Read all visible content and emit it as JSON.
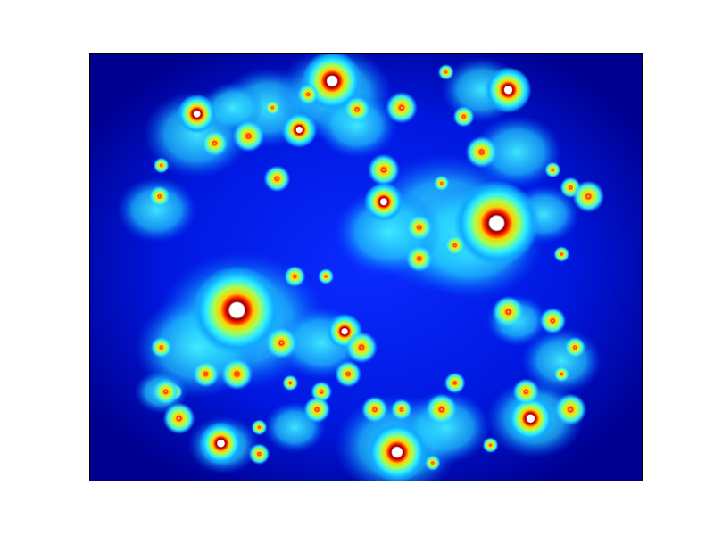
{
  "figure": {
    "background": "#ffffff",
    "frame_color": "#000000",
    "image_content": "julia-set-fractal",
    "colormap": "jet",
    "colormap_stops": [
      "#00008f",
      "#0000ff",
      "#00ffff",
      "#ffff00",
      "#ff0000",
      "#800000"
    ],
    "interior_color": "#ffffff",
    "axis_ticks_shown": false,
    "axis_labels_shown": false
  }
}
